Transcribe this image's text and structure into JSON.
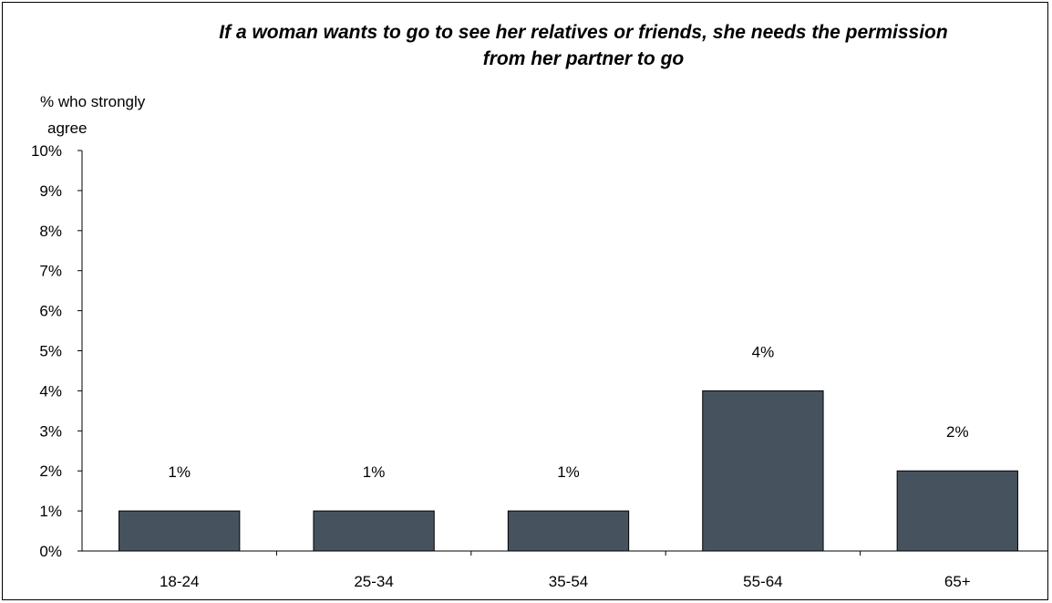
{
  "chart_data": {
    "type": "bar",
    "title": "If a woman wants to go to see her relatives or friends, she needs the permission from her partner to go",
    "title_lines": [
      "If a woman wants to go to see her relatives or friends, she needs the permission",
      "from her partner to go"
    ],
    "ylabel_lines": [
      "% who strongly",
      "agree"
    ],
    "ylim": [
      0,
      10
    ],
    "y_ticks": [
      0,
      1,
      2,
      3,
      4,
      5,
      6,
      7,
      8,
      9,
      10
    ],
    "y_tick_labels": [
      "0%",
      "1%",
      "2%",
      "3%",
      "4%",
      "5%",
      "6%",
      "7%",
      "8%",
      "9%",
      "10%"
    ],
    "categories": [
      "18-24",
      "25-34",
      "35-54",
      "55-64",
      "65+"
    ],
    "values": [
      1,
      1,
      1,
      4,
      2
    ],
    "data_labels": [
      "1%",
      "1%",
      "1%",
      "4%",
      "2%"
    ],
    "bar_color": "#46535e",
    "grid": false,
    "legend": false
  }
}
